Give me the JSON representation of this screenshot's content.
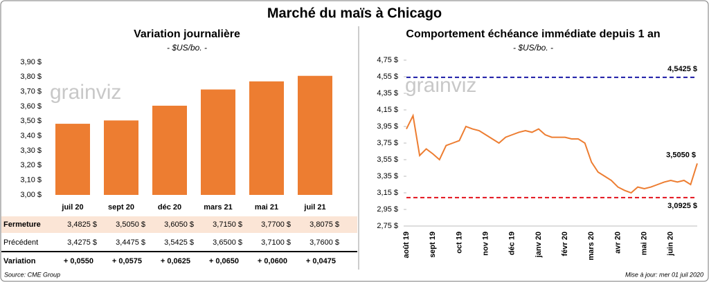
{
  "title": "Marché du maïs à Chicago",
  "watermark": "grainviz",
  "source": "Source: CME Group",
  "updated": "Mise à jour: mer 01 juil 2020",
  "chart_data": [
    {
      "type": "bar",
      "title": "Variation journalière",
      "subtitle": "- $US/bo. -",
      "color": "#ed7d31",
      "categories": [
        "juil 20",
        "sept 20",
        "déc 20",
        "mars 21",
        "mai 21",
        "juil 21"
      ],
      "values": [
        3.4825,
        3.505,
        3.605,
        3.715,
        3.77,
        3.8075
      ],
      "value_labels": [
        "3,4825  $",
        "3,5050  $",
        "3,6050  $",
        "3,7150  $",
        "3,7700  $",
        "3,8075  $"
      ],
      "ylim": [
        3.0,
        3.9
      ],
      "yticks": [
        {
          "value": 3.0,
          "label": "3,00 $"
        },
        {
          "value": 3.1,
          "label": "3,10 $"
        },
        {
          "value": 3.2,
          "label": "3,20 $"
        },
        {
          "value": 3.3,
          "label": "3,30 $"
        },
        {
          "value": 3.4,
          "label": "3,40 $"
        },
        {
          "value": 3.5,
          "label": "3,50 $"
        },
        {
          "value": 3.6,
          "label": "3,60 $"
        },
        {
          "value": 3.7,
          "label": "3,70 $"
        },
        {
          "value": 3.8,
          "label": "3,80 $"
        },
        {
          "value": 3.9,
          "label": "3,90 $"
        }
      ]
    },
    {
      "type": "line",
      "title": "Comportement  échéance immédiate depuis 1 an",
      "subtitle": "- $US/bo. -",
      "color": "#ed7d31",
      "categories": [
        "août 19",
        null,
        null,
        null,
        "sept 19",
        null,
        null,
        null,
        "oct 19",
        null,
        null,
        null,
        "nov 19",
        null,
        null,
        null,
        "déc 19",
        null,
        null,
        null,
        "janv 20",
        null,
        null,
        null,
        "févr 20",
        null,
        null,
        null,
        "mars 20",
        null,
        null,
        null,
        "avr 20",
        null,
        null,
        null,
        "mai 20",
        null,
        null,
        null,
        "juin 20",
        null,
        null,
        null,
        null
      ],
      "values": [
        3.92,
        4.08,
        3.6,
        3.68,
        3.62,
        3.55,
        3.72,
        3.75,
        3.78,
        3.95,
        3.92,
        3.9,
        3.85,
        3.8,
        3.75,
        3.82,
        3.85,
        3.88,
        3.9,
        3.88,
        3.92,
        3.85,
        3.82,
        3.82,
        3.82,
        3.8,
        3.8,
        3.75,
        3.52,
        3.4,
        3.35,
        3.3,
        3.22,
        3.18,
        3.15,
        3.22,
        3.2,
        3.22,
        3.25,
        3.28,
        3.3,
        3.28,
        3.3,
        3.25,
        3.505
      ],
      "last_value_label": "3,5050 $",
      "reference_lines": [
        {
          "value": 4.5425,
          "label": "4,5425 $",
          "color": "#1a1aa6"
        },
        {
          "value": 3.0925,
          "label": "3,0925 $",
          "color": "#e3101a"
        }
      ],
      "ylim": [
        2.75,
        4.75
      ],
      "yticks": [
        {
          "value": 2.75,
          "label": "2,75 $"
        },
        {
          "value": 2.95,
          "label": "2,95 $"
        },
        {
          "value": 3.15,
          "label": "3,15 $"
        },
        {
          "value": 3.35,
          "label": "3,35 $"
        },
        {
          "value": 3.55,
          "label": "3,55 $"
        },
        {
          "value": 3.75,
          "label": "3,75 $"
        },
        {
          "value": 3.95,
          "label": "3,95 $"
        },
        {
          "value": 4.15,
          "label": "4,15 $"
        },
        {
          "value": 4.35,
          "label": "4,35 $"
        },
        {
          "value": 4.55,
          "label": "4,55 $"
        },
        {
          "value": 4.75,
          "label": "4,75 $"
        }
      ]
    }
  ],
  "table": {
    "row_labels": [
      "Fermeture",
      "Précédent",
      "Variation"
    ],
    "previous": [
      "3,4275  $",
      "3,4475  $",
      "3,5425  $",
      "3,6500  $",
      "3,7100  $",
      "3,7600  $"
    ],
    "variation": [
      "+ 0,0550",
      "+ 0,0575",
      "+ 0,0625",
      "+ 0,0650",
      "+ 0,0600",
      "+ 0,0475"
    ]
  }
}
